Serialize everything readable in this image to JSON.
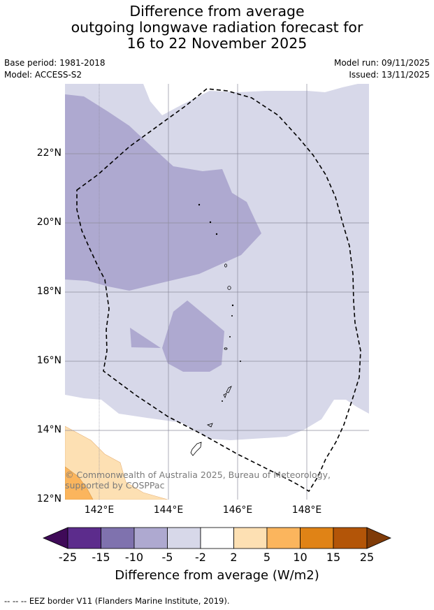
{
  "title": {
    "line1": "Difference from average",
    "line2": "outgoing longwave radiation forecast for",
    "line3": "16 to 22 November 2025"
  },
  "meta": {
    "base_period": "Base period: 1981-2018",
    "model": "Model: ACCESS-S2",
    "model_run": "Model run: 09/11/2025",
    "issued": "Issued: 13/11/2025"
  },
  "map": {
    "lat_labels": [
      "22°N",
      "20°N",
      "18°N",
      "16°N",
      "14°N",
      "12°N"
    ],
    "lon_labels": [
      "142°E",
      "144°E",
      "146°E",
      "148°E"
    ],
    "copyright": "© Commonwealth of Australia 2025, Bureau of Meteorology, supported by COSPPac"
  },
  "colorbar": {
    "ticks": [
      "-25",
      "-15",
      "-10",
      "-5",
      "-2",
      "2",
      "5",
      "10",
      "15",
      "25"
    ],
    "colors": [
      "#3f0a58",
      "#5c2c8c",
      "#7f72ae",
      "#aea9d0",
      "#d7d8e9",
      "#ffffff",
      "#fde0b3",
      "#fbb55d",
      "#e08316",
      "#b35508",
      "#7f3b08"
    ],
    "label": "Difference from average (W/m2)"
  },
  "footer": {
    "legend_text": "--  --  -- EEZ border V11 (Flanders Marine Institute, 2019)."
  }
}
